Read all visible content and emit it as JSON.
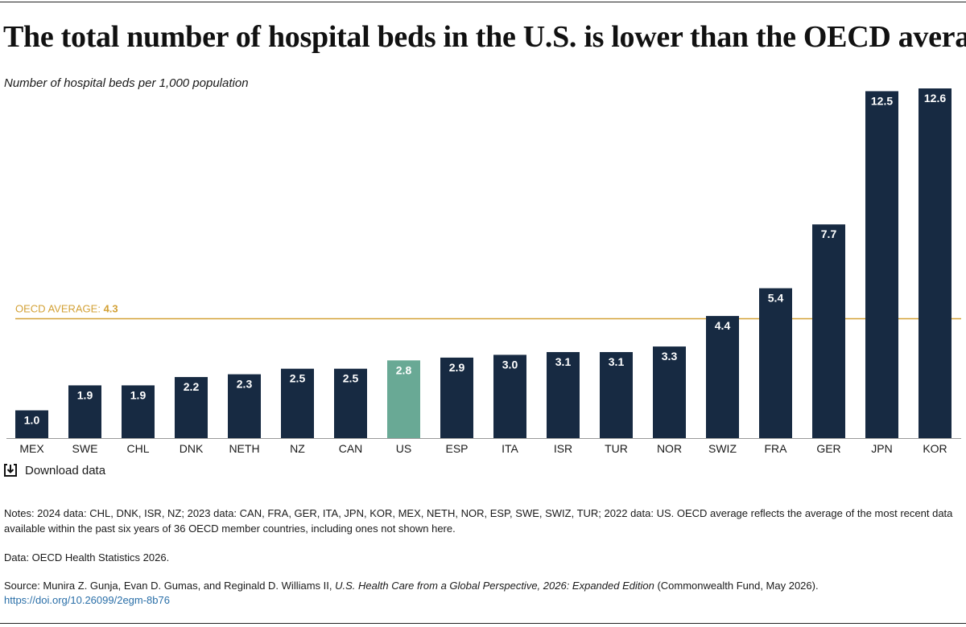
{
  "title": "The total number of hospital beds in the U.S. is lower than the OECD average.",
  "download_label": "Download data",
  "notes": "Notes: 2024 data: CHL, DNK, ISR, NZ; 2023 data: CAN, FRA, GER, ITA, JPN, KOR, MEX, NETH, NOR, ESP, SWE, SWIZ, TUR; 2022 data: US. OECD average reflects the average of the most recent data available within the past six years of 36 OECD member countries, including ones not shown here.",
  "data_source": "Data: OECD Health Statistics 2026.",
  "source": {
    "prefix": "Source: Munira Z. Gunja, Evan D. Gumas, and Reginald D. Williams II, ",
    "publication": "U.S. Health Care from a Global Perspective, 2026: Expanded Edition",
    "suffix": " (Commonwealth Fund, May 2026).",
    "doi": "https://doi.org/10.26099/2egm-8b76"
  },
  "chart_data": {
    "type": "bar",
    "ylabel": "Number of hospital beds per 1,000 population",
    "categories": [
      "MEX",
      "SWE",
      "CHL",
      "DNK",
      "NETH",
      "NZ",
      "CAN",
      "US",
      "ESP",
      "ITA",
      "ISR",
      "TUR",
      "NOR",
      "SWIZ",
      "FRA",
      "GER",
      "JPN",
      "KOR"
    ],
    "values": [
      1.0,
      1.9,
      1.9,
      2.2,
      2.3,
      2.5,
      2.5,
      2.8,
      2.9,
      3.0,
      3.1,
      3.1,
      3.3,
      4.4,
      5.4,
      7.7,
      12.5,
      12.6
    ],
    "value_labels": [
      "1.0",
      "1.9",
      "1.9",
      "2.2",
      "2.3",
      "2.5",
      "2.5",
      "2.8",
      "2.9",
      "3.0",
      "3.1",
      "3.1",
      "3.3",
      "4.4",
      "5.4",
      "7.7",
      "12.5",
      "12.6"
    ],
    "highlight": "US",
    "ylim": [
      0,
      12.6
    ],
    "grid": false,
    "reference_line": {
      "label": "OECD AVERAGE: ",
      "value": 4.3,
      "value_label": "4.3"
    },
    "colors": {
      "bar": "#172a42",
      "highlight": "#69a995",
      "reference": "#d3a136",
      "axis": "#999999"
    }
  }
}
